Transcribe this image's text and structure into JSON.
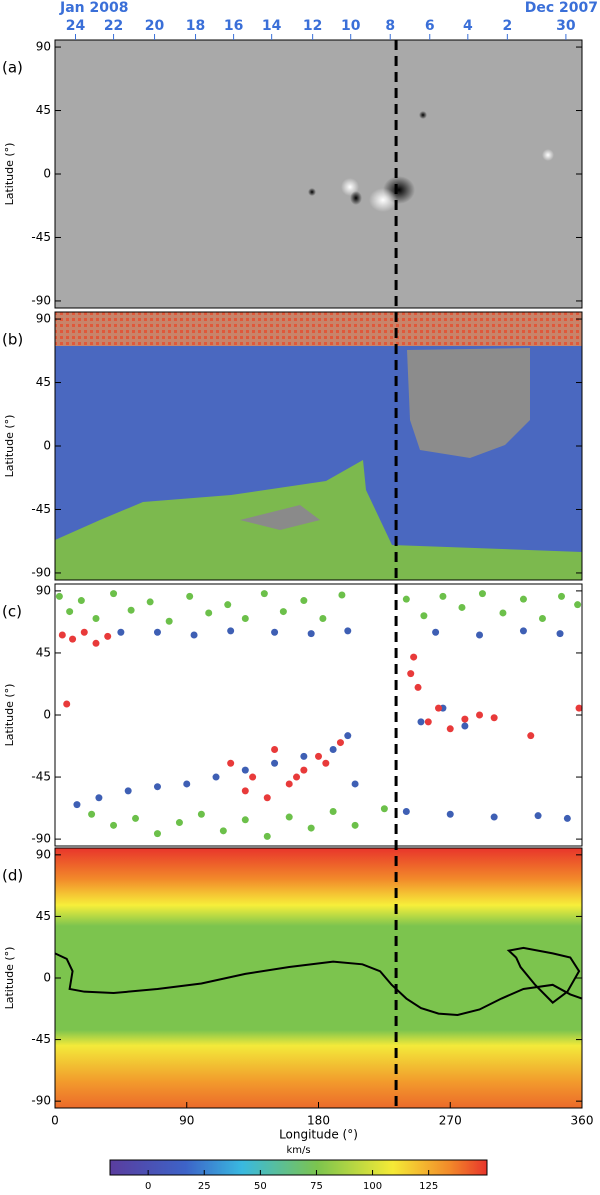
{
  "chart_data": [
    {
      "type": "image",
      "panel_label": "(a)",
      "ylabel": "Latitude (°)",
      "xlim": [
        0,
        360
      ],
      "ylim": [
        -95,
        95
      ],
      "yticks": [
        -90,
        -45,
        0,
        45,
        90
      ],
      "top_left_label": "Jan 2008",
      "top_right_label": "Dec 2007",
      "x2ticks": [
        {
          "value": 14,
          "label": "24"
        },
        {
          "value": 40,
          "label": "22"
        },
        {
          "value": 68,
          "label": "20"
        },
        {
          "value": 96,
          "label": "18"
        },
        {
          "value": 122,
          "label": "16"
        },
        {
          "value": 148,
          "label": "14"
        },
        {
          "value": 176,
          "label": "12"
        },
        {
          "value": 202,
          "label": "10"
        },
        {
          "value": 229,
          "label": "8"
        },
        {
          "value": 256,
          "label": "6"
        },
        {
          "value": 282,
          "label": "4"
        },
        {
          "value": 309,
          "label": "2"
        },
        {
          "value": 349,
          "label": "30"
        }
      ]
    },
    {
      "type": "image",
      "panel_label": "(b)",
      "ylabel": "Latitude (°)",
      "xlim": [
        0,
        360
      ],
      "ylim": [
        -95,
        95
      ],
      "yticks": [
        -90,
        -45,
        0,
        45,
        90
      ]
    },
    {
      "type": "scatter",
      "panel_label": "(c)",
      "ylabel": "Latitude (°)",
      "xlim": [
        0,
        360
      ],
      "ylim": [
        -95,
        95
      ],
      "yticks": [
        -90,
        -45,
        0,
        45,
        90
      ],
      "series": [
        {
          "color": "#6cc04a",
          "x": [
            3,
            10,
            18,
            28,
            40,
            52,
            65,
            78,
            92,
            105,
            118,
            130,
            143,
            156,
            170,
            183,
            196,
            240,
            252,
            265,
            278,
            292,
            306,
            320,
            333,
            346,
            357,
            25,
            40,
            55,
            70,
            85,
            100,
            115,
            130,
            145,
            160,
            175,
            190,
            205,
            225
          ],
          "y": [
            86,
            75,
            83,
            70,
            88,
            76,
            82,
            68,
            86,
            74,
            80,
            70,
            88,
            75,
            83,
            70,
            87,
            84,
            72,
            86,
            78,
            88,
            74,
            84,
            70,
            86,
            80,
            -72,
            -80,
            -75,
            -86,
            -78,
            -72,
            -84,
            -76,
            -88,
            -74,
            -82,
            -70,
            -80,
            -68
          ]
        },
        {
          "color": "#3e5fb4",
          "x": [
            45,
            70,
            95,
            120,
            150,
            175,
            200,
            260,
            290,
            320,
            345,
            15,
            30,
            50,
            70,
            90,
            110,
            130,
            150,
            170,
            190,
            200,
            205,
            240,
            270,
            300,
            330,
            350,
            250,
            265,
            280
          ],
          "y": [
            60,
            60,
            58,
            61,
            60,
            59,
            61,
            60,
            58,
            61,
            59,
            -65,
            -60,
            -55,
            -52,
            -50,
            -45,
            -40,
            -35,
            -30,
            -25,
            -15,
            -50,
            -70,
            -72,
            -74,
            -73,
            -75,
            -5,
            5,
            -8
          ]
        },
        {
          "color": "#e83a3a",
          "x": [
            5,
            12,
            20,
            28,
            36,
            8,
            120,
            135,
            150,
            160,
            170,
            180,
            195,
            130,
            145,
            165,
            185,
            243,
            248,
            255,
            262,
            270,
            280,
            290,
            245,
            300,
            325,
            358
          ],
          "y": [
            58,
            55,
            60,
            52,
            57,
            8,
            -35,
            -45,
            -25,
            -50,
            -40,
            -30,
            -20,
            -55,
            -60,
            -45,
            -35,
            30,
            20,
            -5,
            5,
            -10,
            -3,
            0,
            42,
            -2,
            -15,
            5
          ]
        }
      ]
    },
    {
      "type": "heatmap",
      "panel_label": "(d)",
      "ylabel": "Latitude (°)",
      "xlabel": "Longitude (°)",
      "xlim": [
        0,
        360
      ],
      "ylim": [
        -95,
        95
      ],
      "yticks": [
        -90,
        -45,
        0,
        45,
        90
      ],
      "xticks": [
        0,
        90,
        180,
        270,
        360
      ],
      "series": [
        {
          "color": "#000000",
          "x": [
            0,
            8,
            12,
            10,
            20,
            40,
            70,
            100,
            130,
            160,
            190,
            210,
            222,
            230,
            240,
            250,
            262,
            275,
            290,
            305,
            320,
            340,
            352,
            360
          ],
          "y": [
            18,
            14,
            5,
            -8,
            -10,
            -11,
            -8,
            -4,
            3,
            8,
            12,
            10,
            5,
            -5,
            -15,
            -22,
            -26,
            -27,
            -23,
            -15,
            -8,
            -5,
            -12,
            -15
          ]
        },
        {
          "color": "#000000",
          "x": [
            315,
            310,
            320,
            340,
            352,
            358,
            350,
            340,
            328,
            318,
            315
          ],
          "y": [
            15,
            20,
            22,
            18,
            15,
            5,
            -10,
            -18,
            -5,
            8,
            15
          ]
        }
      ],
      "colorbar": {
        "label": "km/s",
        "lim": [
          -17,
          151
        ],
        "ticks": [
          0,
          25,
          50,
          75,
          100,
          125
        ]
      }
    }
  ],
  "reference_longitude": 233
}
